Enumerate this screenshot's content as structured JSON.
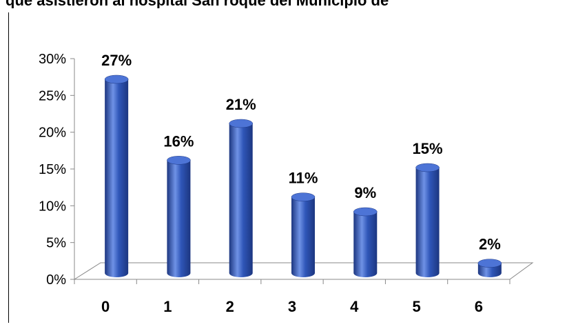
{
  "chart_data": {
    "type": "bar",
    "title": "que asistieron al hospital San roque del Municipio de",
    "categories": [
      "0",
      "1",
      "2",
      "3",
      "4",
      "5",
      "6"
    ],
    "values": [
      27,
      16,
      21,
      11,
      9,
      15,
      2
    ],
    "data_labels": [
      "27%",
      "16%",
      "21%",
      "11%",
      "9%",
      "15%",
      "2%"
    ],
    "y_ticks": [
      "0%",
      "5%",
      "10%",
      "15%",
      "20%",
      "25%",
      "30%"
    ],
    "ylim": [
      0,
      30
    ],
    "xlabel": "",
    "ylabel": "",
    "grid": false,
    "legend": "none",
    "bar_style": "3d-cylinder",
    "colors": {
      "bar": "#2f56b8",
      "bar_light": "#6f92e6",
      "bar_dark": "#1c3680",
      "top": "#4d74d6"
    }
  }
}
